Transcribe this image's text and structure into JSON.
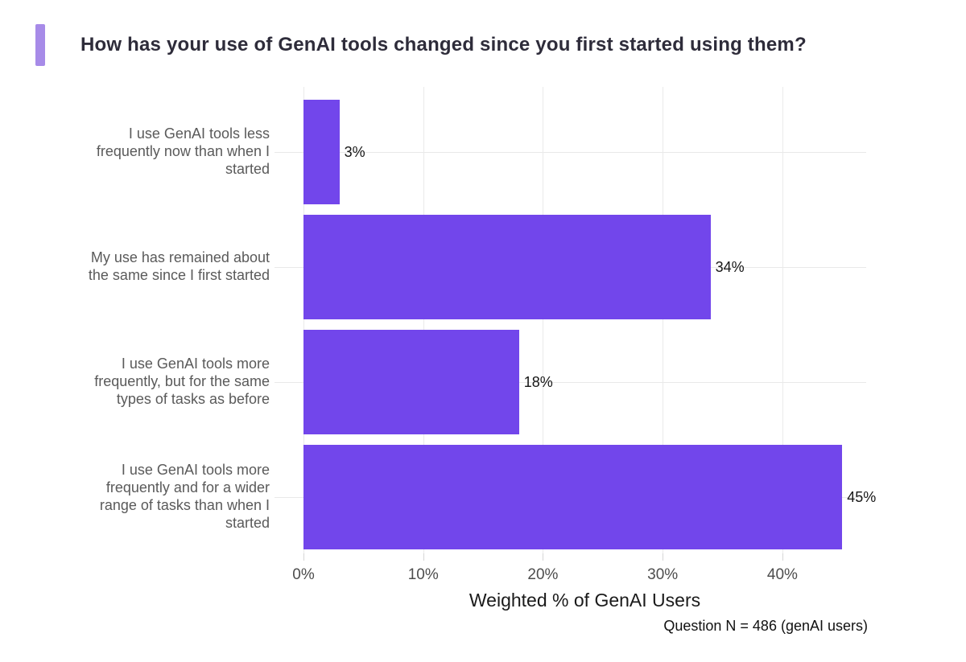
{
  "title": "How has your use of GenAI tools changed since you first started using them?",
  "colors": {
    "bar": "#7246eb",
    "accent": "#a78be8",
    "title_text": "#2e2c3a",
    "category_text": "#5a5a5a",
    "gridline": "#eaeaea"
  },
  "chart_data": {
    "type": "bar",
    "orientation": "horizontal",
    "categories": [
      "I use GenAI tools less frequently now than when I started",
      "My use has remained about the same since I first started",
      "I use GenAI tools more frequently, but for the same types of tasks as before",
      "I use GenAI tools more frequently and for a wider range of tasks than when I started"
    ],
    "values": [
      3,
      34,
      18,
      45
    ],
    "value_labels": [
      "3%",
      "34%",
      "18%",
      "45%"
    ],
    "xlabel": "Weighted % of GenAI Users",
    "x_tick_values": [
      0,
      10,
      20,
      30,
      40
    ],
    "x_tick_labels": [
      "0%",
      "10%",
      "20%",
      "30%",
      "40%"
    ],
    "xlim": [
      0,
      47
    ],
    "grid": true,
    "legend": "none",
    "note": "Question N = 486 (genAI users)"
  }
}
